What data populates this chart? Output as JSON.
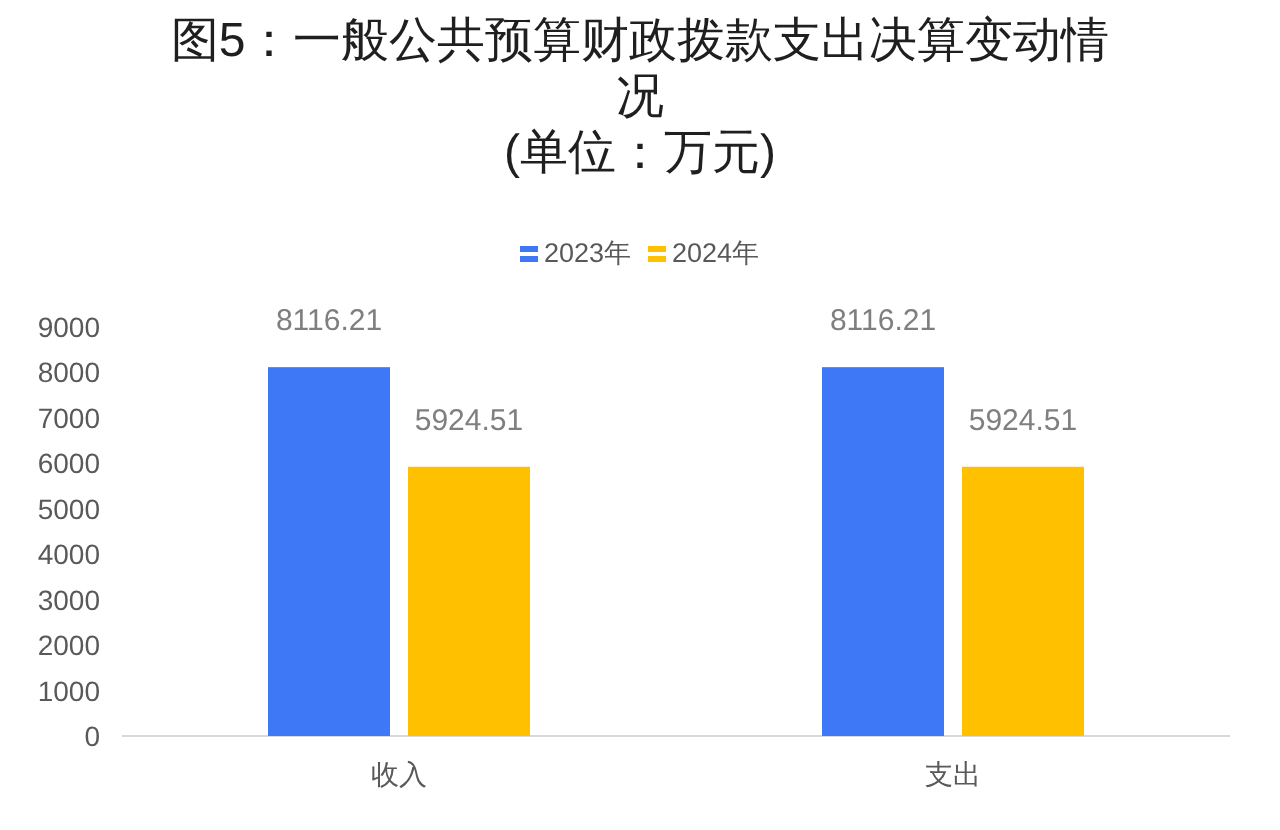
{
  "chart_data": {
    "type": "bar",
    "title": "图5：一般公共预算财政拨款支出决算变动情况",
    "subtitle": "(单位：万元)",
    "categories": [
      "收入",
      "支出"
    ],
    "series": [
      {
        "name": "2023年",
        "color": "#3f78f6",
        "values": [
          8116.21,
          8116.21
        ]
      },
      {
        "name": "2024年",
        "color": "#ffc000",
        "values": [
          5924.51,
          5924.51
        ]
      }
    ],
    "ylim": [
      0,
      9000
    ],
    "yticks": [
      0,
      1000,
      2000,
      3000,
      4000,
      5000,
      6000,
      7000,
      8000,
      9000
    ],
    "data_labels": true,
    "legend": "top"
  }
}
